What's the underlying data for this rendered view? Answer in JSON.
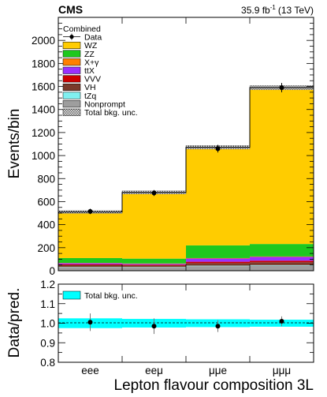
{
  "header": {
    "experiment": "CMS",
    "lumi": "35.9 fb",
    "lumi_sup": "-1",
    "energy": "(13 TeV)"
  },
  "chart_data": {
    "type": "bar",
    "stacked": true,
    "categories": [
      "eee",
      "eeμ",
      "μμe",
      "μμμ"
    ],
    "xlabel": "Lepton flavour composition 3L",
    "ylabel": "Events/bin",
    "ylim": [
      0,
      2200
    ],
    "yticks": [
      0,
      200,
      400,
      600,
      800,
      1000,
      1200,
      1400,
      1600,
      1800,
      2000
    ],
    "legend": {
      "title": "Combined",
      "position": "top-left"
    },
    "series": [
      {
        "name": "Nonprompt",
        "color": "#9e9e9e",
        "values": [
          30,
          30,
          40,
          45
        ]
      },
      {
        "name": "tZq",
        "color": "#7ff0f0",
        "values": [
          3,
          3,
          4,
          4
        ]
      },
      {
        "name": "VH",
        "color": "#7a3a2a",
        "values": [
          15,
          12,
          22,
          25
        ]
      },
      {
        "name": "VVV",
        "color": "#cc0000",
        "values": [
          7,
          7,
          12,
          13
        ]
      },
      {
        "name": "ttX",
        "color": "#9b30ff",
        "values": [
          10,
          8,
          28,
          33
        ]
      },
      {
        "name": "X+γ",
        "color": "#ff8000",
        "values": [
          3,
          3,
          4,
          4
        ]
      },
      {
        "name": "ZZ",
        "color": "#1ec81e",
        "values": [
          42,
          42,
          110,
          108
        ]
      },
      {
        "name": "WZ",
        "color": "#ffcc00",
        "values": [
          400,
          575,
          852,
          1358
        ]
      }
    ],
    "data": {
      "name": "Data",
      "values": [
        515,
        675,
        1060,
        1590
      ],
      "errors": [
        23,
        26,
        33,
        40
      ]
    },
    "uncertainty": {
      "name": "Total bkg. unc.",
      "values": [
        12,
        14,
        16,
        18
      ]
    },
    "ratio": {
      "ylabel": "Data/pred.",
      "ylim": [
        0.8,
        1.2
      ],
      "yticks": [
        0.8,
        0.9,
        1.0,
        1.1,
        1.2
      ],
      "ytick_labels": [
        "0.8",
        "0.9",
        "1.0",
        "1.1",
        "1.2"
      ],
      "values": [
        1.005,
        0.985,
        0.985,
        1.01
      ],
      "errors": [
        0.045,
        0.04,
        0.03,
        0.025
      ],
      "band": [
        0.025,
        0.022,
        0.02,
        0.018
      ],
      "band_color": "#00ffff",
      "legend": "Total bkg. unc."
    }
  }
}
